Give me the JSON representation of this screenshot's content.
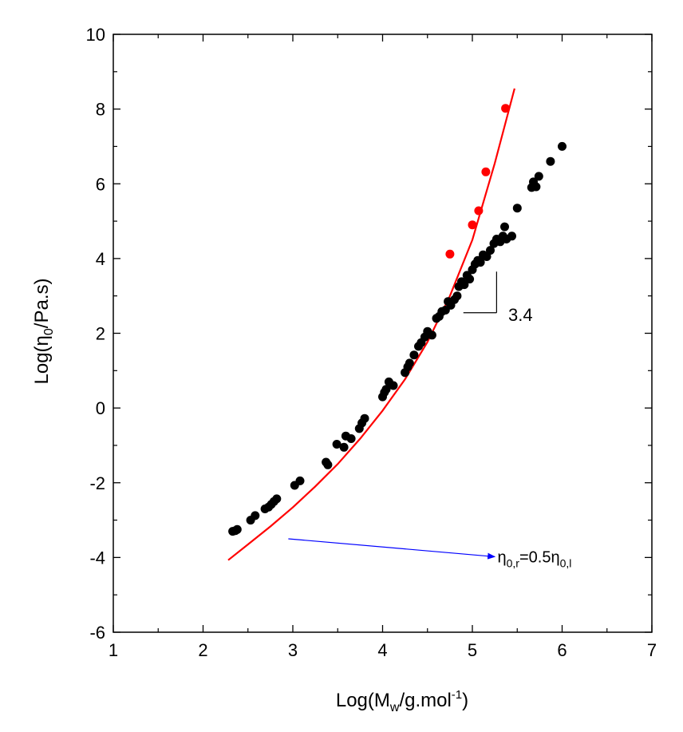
{
  "chart_data": {
    "type": "scatter",
    "title": "",
    "xlabel": {
      "main": "Log(M",
      "sub": "w",
      "mid": "/g.mol",
      "sup": "-1",
      "end": ")"
    },
    "ylabel": {
      "main": "Log(η",
      "sub": "0",
      "end": "/Pa.s)"
    },
    "xlim": [
      1,
      7
    ],
    "ylim": [
      -6,
      10
    ],
    "x_ticks": [
      1,
      2,
      3,
      4,
      5,
      6,
      7
    ],
    "y_ticks": [
      -6,
      -4,
      -2,
      0,
      2,
      4,
      6,
      8,
      10
    ],
    "grid": false,
    "colors": {
      "black_series": "#000000",
      "red_series": "#ff0000",
      "fit_line": "#ff0000",
      "arrow": "#0000ff"
    },
    "series": [
      {
        "marker": "circle",
        "color": "#000000",
        "points": [
          [
            2.33,
            -3.3
          ],
          [
            2.36,
            -3.28
          ],
          [
            2.38,
            -3.25
          ],
          [
            2.53,
            -3.0
          ],
          [
            2.58,
            -2.88
          ],
          [
            2.69,
            -2.7
          ],
          [
            2.73,
            -2.65
          ],
          [
            2.76,
            -2.58
          ],
          [
            2.79,
            -2.5
          ],
          [
            2.82,
            -2.43
          ],
          [
            3.02,
            -2.07
          ],
          [
            3.08,
            -1.95
          ],
          [
            3.37,
            -1.45
          ],
          [
            3.39,
            -1.52
          ],
          [
            3.49,
            -0.97
          ],
          [
            3.57,
            -1.05
          ],
          [
            3.59,
            -0.75
          ],
          [
            3.65,
            -0.82
          ],
          [
            3.74,
            -0.55
          ],
          [
            3.77,
            -0.4
          ],
          [
            3.8,
            -0.28
          ],
          [
            4.0,
            0.3
          ],
          [
            4.02,
            0.42
          ],
          [
            4.04,
            0.5
          ],
          [
            4.07,
            0.7
          ],
          [
            4.12,
            0.6
          ],
          [
            4.25,
            0.95
          ],
          [
            4.28,
            1.1
          ],
          [
            4.3,
            1.2
          ],
          [
            4.35,
            1.42
          ],
          [
            4.4,
            1.65
          ],
          [
            4.43,
            1.75
          ],
          [
            4.47,
            1.9
          ],
          [
            4.5,
            2.05
          ],
          [
            4.55,
            1.95
          ],
          [
            4.6,
            2.4
          ],
          [
            4.63,
            2.45
          ],
          [
            4.66,
            2.58
          ],
          [
            4.7,
            2.62
          ],
          [
            4.73,
            2.85
          ],
          [
            4.76,
            2.75
          ],
          [
            4.8,
            2.9
          ],
          [
            4.83,
            3.0
          ],
          [
            4.85,
            3.25
          ],
          [
            4.88,
            3.38
          ],
          [
            4.91,
            3.3
          ],
          [
            4.94,
            3.55
          ],
          [
            4.97,
            3.45
          ],
          [
            5.0,
            3.7
          ],
          [
            5.03,
            3.85
          ],
          [
            5.06,
            3.95
          ],
          [
            5.09,
            3.9
          ],
          [
            5.12,
            4.1
          ],
          [
            5.16,
            4.05
          ],
          [
            5.2,
            4.22
          ],
          [
            5.24,
            4.4
          ],
          [
            5.27,
            4.52
          ],
          [
            5.31,
            4.45
          ],
          [
            5.34,
            4.6
          ],
          [
            5.38,
            4.52
          ],
          [
            5.36,
            4.85
          ],
          [
            5.44,
            4.6
          ],
          [
            5.5,
            5.35
          ],
          [
            5.66,
            5.9
          ],
          [
            5.68,
            6.05
          ],
          [
            5.71,
            5.92
          ],
          [
            5.74,
            6.2
          ],
          [
            5.87,
            6.6
          ],
          [
            6.0,
            7.0
          ]
        ]
      },
      {
        "marker": "circle",
        "color": "#ff0000",
        "points": [
          [
            4.75,
            4.12
          ],
          [
            5.0,
            4.9
          ],
          [
            5.07,
            5.28
          ],
          [
            5.15,
            6.32
          ],
          [
            5.37,
            8.02
          ]
        ]
      },
      {
        "type": "line",
        "color": "#ff0000",
        "points": [
          [
            2.28,
            -4.07
          ],
          [
            2.5,
            -3.65
          ],
          [
            2.75,
            -3.17
          ],
          [
            3.0,
            -2.66
          ],
          [
            3.25,
            -2.1
          ],
          [
            3.5,
            -1.5
          ],
          [
            3.75,
            -0.82
          ],
          [
            4.0,
            -0.07
          ],
          [
            4.25,
            0.77
          ],
          [
            4.5,
            1.77
          ],
          [
            4.75,
            3.0
          ],
          [
            5.0,
            4.5
          ],
          [
            5.25,
            6.55
          ],
          [
            5.47,
            8.55
          ]
        ]
      }
    ],
    "annotations": [
      {
        "kind": "slope-triangle",
        "label": "3.4",
        "corner": [
          5.27,
          2.55
        ],
        "x_start": 4.9,
        "y_top": 3.65,
        "label_pos": [
          5.4,
          2.5
        ]
      },
      {
        "kind": "arrow",
        "from": [
          2.95,
          -3.5
        ],
        "to": [
          5.25,
          -3.98
        ],
        "label": {
          "main": "η",
          "sub1": "0,r",
          "mid": "=0.5η",
          "sub2": "0,l"
        },
        "label_pos": [
          5.28,
          -3.98
        ]
      }
    ]
  }
}
